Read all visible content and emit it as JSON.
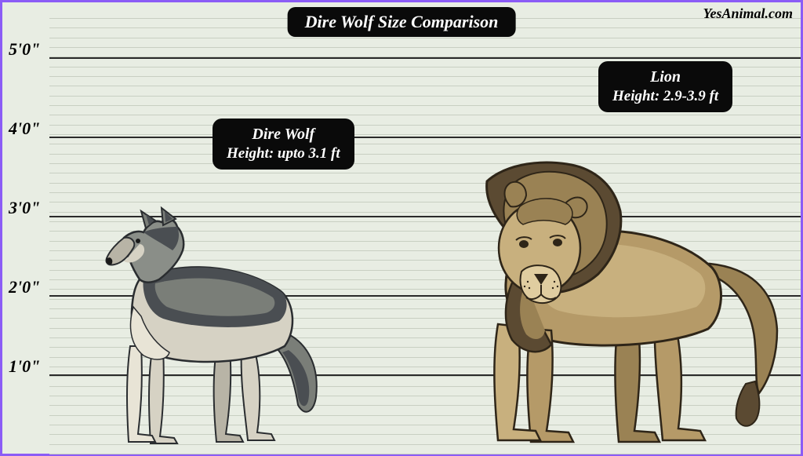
{
  "title": "Dire Wolf Size Comparison",
  "watermark": "YesAnimal.com",
  "chart": {
    "type": "height-comparison",
    "background_color": "#e8ede3",
    "border_color": "#8b5cf6",
    "grid_minor_color": "#c8cfc2",
    "grid_major_color": "#2a2a2a",
    "n_minor_lines": 45,
    "y_axis": {
      "ticks": [
        "1'0\"",
        "2'0\"",
        "3'0\"",
        "4'0\"",
        "5'0\""
      ],
      "unit": "feet-inches",
      "min_ft": 0,
      "max_ft": 5.5,
      "label_fontsize": 22
    },
    "title_box": {
      "bg": "#0a0a0a",
      "color": "#ffffff",
      "fontsize": 22
    },
    "info_box_style": {
      "bg": "#0a0a0a",
      "color": "#ffffff",
      "radius": 12
    }
  },
  "animals": {
    "dire_wolf": {
      "name": "Dire Wolf",
      "height_text": "Height: upto 3.1 ft",
      "height_ft": 3.1,
      "info_name_fontsize": 20,
      "info_height_fontsize": 19,
      "palette": {
        "fur_dark": "#4a4e52",
        "fur_mid": "#7a7e78",
        "fur_light": "#d6d2c4",
        "belly": "#e8e4d6",
        "outline": "#2a2d30"
      }
    },
    "lion": {
      "name": "Lion",
      "height_text": "Height: 2.9-3.9 ft",
      "height_min_ft": 2.9,
      "height_max_ft": 3.9,
      "info_name_fontsize": 20,
      "info_height_fontsize": 19,
      "palette": {
        "mane_dark": "#5b4a32",
        "mane_light": "#9a8254",
        "body": "#b59a68",
        "body_light": "#c8b07e",
        "outline": "#2e2518"
      }
    }
  }
}
